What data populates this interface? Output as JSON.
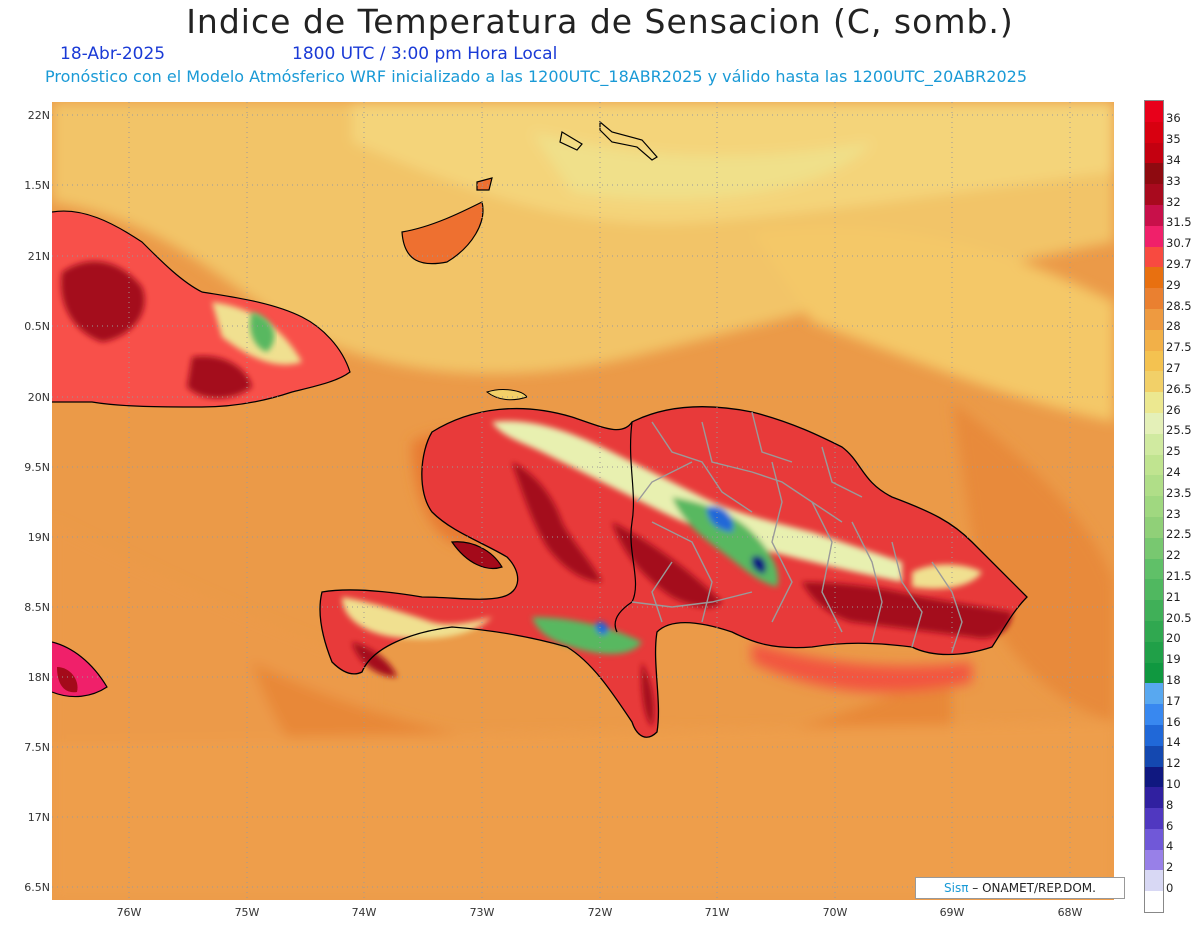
{
  "header": {
    "title": "Indice de Temperatura de Sensacion (C, somb.)",
    "date": "18-Abr-2025",
    "time": "1800 UTC / 3:00 pm Hora Local",
    "model_line": "Pronóstico con el Modelo Atmósferico WRF inicializado a las 1200UTC_18ABR2025 y válido hasta las  1200UTC_20ABR2025"
  },
  "map": {
    "lat_labels": [
      "22N",
      "1.5N",
      "21N",
      "0.5N",
      "20N",
      "9.5N",
      "19N",
      "8.5N",
      "18N",
      "7.5N",
      "17N",
      "6.5N"
    ],
    "lon_labels": [
      "76W",
      "75W",
      "74W",
      "73W",
      "72W",
      "71W",
      "70W",
      "69W",
      "68W"
    ],
    "field": "apparent temperature shading",
    "credit_prefix": "Sisπ",
    "credit_suffix": " – ONAMET/REP.DOM."
  },
  "colorbar": {
    "labels": [
      "36",
      "35",
      "34",
      "33",
      "32",
      "31.5",
      "30.7",
      "29.7",
      "29",
      "28.5",
      "28",
      "27.5",
      "27",
      "26.5",
      "26",
      "25.5",
      "25",
      "24",
      "23.5",
      "23",
      "22.5",
      "22",
      "21.5",
      "21",
      "20.5",
      "20",
      "19",
      "18",
      "17",
      "16",
      "14",
      "12",
      "10",
      "8",
      "6",
      "4",
      "2",
      "0"
    ],
    "colors": [
      "#e8001a",
      "#d80010",
      "#c40010",
      "#8e0a10",
      "#a80a1e",
      "#c8104a",
      "#f0206a",
      "#f84a40",
      "#e87010",
      "#ea8030",
      "#ee9a40",
      "#f2b048",
      "#f4c250",
      "#f2d068",
      "#ece890",
      "#e4f0b8",
      "#d0eaa0",
      "#c0e490",
      "#b0de88",
      "#a0d880",
      "#90d078",
      "#78c870",
      "#60c068",
      "#50b860",
      "#40b058",
      "#30a850",
      "#20a048",
      "#109840",
      "#58a8f0",
      "#3888f0",
      "#2068d8",
      "#1448b0",
      "#101880",
      "#3020a0",
      "#5038c0",
      "#7058d8",
      "#9880e8",
      "#d8d8f4",
      "#ffffff"
    ]
  }
}
